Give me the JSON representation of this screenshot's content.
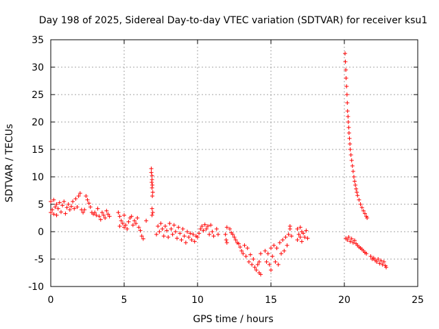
{
  "chart_data": {
    "type": "scatter",
    "title": "Day 198 of 2025, Sidereal Day-to-day VTEC variation (SDTVAR) for receiver ksu1",
    "xlabel": "GPS time / hours",
    "ylabel": "SDTVAR / TECUs",
    "xlim": [
      0,
      25
    ],
    "ylim": [
      -10,
      35
    ],
    "xticks": [
      0,
      5,
      10,
      15,
      20,
      25
    ],
    "yticks": [
      -10,
      -5,
      0,
      5,
      10,
      15,
      20,
      25,
      30,
      35
    ],
    "grid": true,
    "marker": "+",
    "color": "#ff0000",
    "series": [
      {
        "name": "SDTVAR",
        "points": [
          [
            0.0,
            5.5
          ],
          [
            0.0,
            3.5
          ],
          [
            0.1,
            4.0
          ],
          [
            0.2,
            5.8
          ],
          [
            0.2,
            3.2
          ],
          [
            0.3,
            4.5
          ],
          [
            0.4,
            5.0
          ],
          [
            0.4,
            3.0
          ],
          [
            0.5,
            4.2
          ],
          [
            0.6,
            5.3
          ],
          [
            0.7,
            3.6
          ],
          [
            0.8,
            4.8
          ],
          [
            0.9,
            5.5
          ],
          [
            1.0,
            3.3
          ],
          [
            1.1,
            4.4
          ],
          [
            1.2,
            5.0
          ],
          [
            1.3,
            4.0
          ],
          [
            1.4,
            4.6
          ],
          [
            1.5,
            5.5
          ],
          [
            1.6,
            4.2
          ],
          [
            1.7,
            6.0
          ],
          [
            1.8,
            4.5
          ],
          [
            1.9,
            6.5
          ],
          [
            2.0,
            7.0
          ],
          [
            2.1,
            4.0
          ],
          [
            2.2,
            3.5
          ],
          [
            2.3,
            4.0
          ],
          [
            2.4,
            6.5
          ],
          [
            2.5,
            5.8
          ],
          [
            2.6,
            5.2
          ],
          [
            2.7,
            4.5
          ],
          [
            2.8,
            3.5
          ],
          [
            2.9,
            3.2
          ],
          [
            3.0,
            3.5
          ],
          [
            3.1,
            3.0
          ],
          [
            3.2,
            4.2
          ],
          [
            3.3,
            2.8
          ],
          [
            3.4,
            2.2
          ],
          [
            3.5,
            3.5
          ],
          [
            3.6,
            3.0
          ],
          [
            3.7,
            2.5
          ],
          [
            3.8,
            3.8
          ],
          [
            3.9,
            3.2
          ],
          [
            4.0,
            2.8
          ],
          [
            4.6,
            3.5
          ],
          [
            4.7,
            2.8
          ],
          [
            4.7,
            1.0
          ],
          [
            4.8,
            2.0
          ],
          [
            4.9,
            1.5
          ],
          [
            5.0,
            3.0
          ],
          [
            5.0,
            0.8
          ],
          [
            5.1,
            1.2
          ],
          [
            5.2,
            0.5
          ],
          [
            5.3,
            1.8
          ],
          [
            5.4,
            2.5
          ],
          [
            5.5,
            2.8
          ],
          [
            5.6,
            1.2
          ],
          [
            5.7,
            2.0
          ],
          [
            5.8,
            1.5
          ],
          [
            5.9,
            2.5
          ],
          [
            6.0,
            0.8
          ],
          [
            6.1,
            0.2
          ],
          [
            6.2,
            -0.8
          ],
          [
            6.3,
            -1.3
          ],
          [
            6.5,
            2.0
          ],
          [
            6.85,
            11.5
          ],
          [
            6.85,
            10.8
          ],
          [
            6.9,
            10.2
          ],
          [
            6.9,
            9.5
          ],
          [
            6.88,
            9.0
          ],
          [
            6.92,
            8.5
          ],
          [
            6.9,
            8.0
          ],
          [
            6.95,
            7.2
          ],
          [
            6.92,
            6.5
          ],
          [
            6.9,
            4.2
          ],
          [
            6.95,
            3.5
          ],
          [
            6.9,
            3.0
          ],
          [
            7.2,
            -0.5
          ],
          [
            7.3,
            1.0
          ],
          [
            7.4,
            0.0
          ],
          [
            7.5,
            1.5
          ],
          [
            7.6,
            0.5
          ],
          [
            7.7,
            -0.8
          ],
          [
            7.8,
            1.0
          ],
          [
            7.9,
            0.2
          ],
          [
            8.0,
            -1.0
          ],
          [
            8.1,
            1.5
          ],
          [
            8.2,
            0.5
          ],
          [
            8.3,
            -0.5
          ],
          [
            8.4,
            1.2
          ],
          [
            8.5,
            0.0
          ],
          [
            8.6,
            -1.2
          ],
          [
            8.7,
            0.8
          ],
          [
            8.8,
            -0.3
          ],
          [
            8.9,
            -1.5
          ],
          [
            9.0,
            0.5
          ],
          [
            9.1,
            -0.8
          ],
          [
            9.2,
            -2.0
          ],
          [
            9.3,
            0.0
          ],
          [
            9.4,
            -1.0
          ],
          [
            9.5,
            -0.3
          ],
          [
            9.6,
            -1.5
          ],
          [
            9.7,
            -0.5
          ],
          [
            9.8,
            -1.8
          ],
          [
            9.9,
            -0.8
          ],
          [
            10.0,
            -1.0
          ],
          [
            10.1,
            -0.3
          ],
          [
            10.2,
            0.5
          ],
          [
            10.3,
            1.0
          ],
          [
            10.4,
            0.2
          ],
          [
            10.5,
            1.3
          ],
          [
            10.6,
            0.5
          ],
          [
            10.7,
            1.0
          ],
          [
            10.8,
            -0.5
          ],
          [
            10.9,
            1.2
          ],
          [
            11.0,
            0.0
          ],
          [
            11.1,
            -0.8
          ],
          [
            11.3,
            0.5
          ],
          [
            11.4,
            -0.5
          ],
          [
            11.9,
            -0.5
          ],
          [
            11.95,
            -1.5
          ],
          [
            12.0,
            -2.0
          ],
          [
            12.0,
            0.8
          ],
          [
            12.2,
            0.5
          ],
          [
            12.3,
            -0.2
          ],
          [
            12.4,
            -0.5
          ],
          [
            12.5,
            -1.0
          ],
          [
            12.6,
            -1.5
          ],
          [
            12.7,
            -2.0
          ],
          [
            12.8,
            -2.2
          ],
          [
            12.9,
            -2.8
          ],
          [
            13.0,
            -3.5
          ],
          [
            13.1,
            -4.0
          ],
          [
            13.2,
            -2.5
          ],
          [
            13.3,
            -4.5
          ],
          [
            13.4,
            -3.0
          ],
          [
            13.5,
            -5.5
          ],
          [
            13.6,
            -4.2
          ],
          [
            13.7,
            -6.0
          ],
          [
            13.8,
            -5.0
          ],
          [
            13.9,
            -6.5
          ],
          [
            14.0,
            -7.0
          ],
          [
            14.1,
            -6.0
          ],
          [
            14.2,
            -7.5
          ],
          [
            14.2,
            -5.5
          ],
          [
            14.3,
            -4.0
          ],
          [
            14.3,
            -7.8
          ],
          [
            14.6,
            -3.5
          ],
          [
            14.7,
            -5.5
          ],
          [
            14.8,
            -4.0
          ],
          [
            14.9,
            -6.0
          ],
          [
            15.0,
            -3.0
          ],
          [
            15.0,
            -7.0
          ],
          [
            15.1,
            -4.5
          ],
          [
            15.2,
            -2.5
          ],
          [
            15.3,
            -5.5
          ],
          [
            15.4,
            -3.0
          ],
          [
            15.5,
            -6.0
          ],
          [
            15.6,
            -2.0
          ],
          [
            15.7,
            -4.0
          ],
          [
            15.8,
            -1.5
          ],
          [
            15.9,
            -3.5
          ],
          [
            16.0,
            -1.0
          ],
          [
            16.1,
            -2.5
          ],
          [
            16.2,
            -0.5
          ],
          [
            16.3,
            0.5
          ],
          [
            16.3,
            1.0
          ],
          [
            16.4,
            -0.8
          ],
          [
            16.8,
            0.5
          ],
          [
            16.8,
            -1.5
          ],
          [
            16.9,
            -0.5
          ],
          [
            17.0,
            0.8
          ],
          [
            17.0,
            -1.0
          ],
          [
            17.1,
            0.0
          ],
          [
            17.1,
            -1.8
          ],
          [
            17.2,
            -0.3
          ],
          [
            17.3,
            -1.0
          ],
          [
            17.4,
            0.2
          ],
          [
            17.5,
            -1.2
          ],
          [
            20.05,
            32.5
          ],
          [
            20.07,
            31.0
          ],
          [
            20.1,
            29.5
          ],
          [
            20.12,
            28.0
          ],
          [
            20.15,
            26.5
          ],
          [
            20.18,
            25.0
          ],
          [
            20.2,
            23.5
          ],
          [
            20.22,
            22.0
          ],
          [
            20.25,
            21.0
          ],
          [
            20.27,
            20.0
          ],
          [
            20.3,
            19.0
          ],
          [
            20.32,
            18.0
          ],
          [
            20.35,
            17.0
          ],
          [
            20.38,
            16.0
          ],
          [
            20.4,
            15.0
          ],
          [
            20.45,
            14.0
          ],
          [
            20.5,
            13.0
          ],
          [
            20.55,
            12.0
          ],
          [
            20.6,
            11.0
          ],
          [
            20.65,
            10.0
          ],
          [
            20.7,
            9.2
          ],
          [
            20.75,
            8.5
          ],
          [
            20.8,
            7.8
          ],
          [
            20.85,
            7.2
          ],
          [
            20.9,
            6.6
          ],
          [
            21.0,
            5.8
          ],
          [
            21.1,
            5.0
          ],
          [
            21.2,
            4.4
          ],
          [
            21.3,
            3.8
          ],
          [
            21.4,
            3.3
          ],
          [
            21.5,
            2.8
          ],
          [
            21.55,
            2.5
          ],
          [
            20.1,
            -1.2
          ],
          [
            20.2,
            -1.5
          ],
          [
            20.3,
            -1.0
          ],
          [
            20.4,
            -1.8
          ],
          [
            20.5,
            -1.3
          ],
          [
            20.6,
            -2.0
          ],
          [
            20.7,
            -1.6
          ],
          [
            20.8,
            -2.2
          ],
          [
            20.9,
            -2.5
          ],
          [
            21.0,
            -2.8
          ],
          [
            21.1,
            -3.0
          ],
          [
            21.2,
            -3.2
          ],
          [
            21.3,
            -3.5
          ],
          [
            21.4,
            -3.8
          ],
          [
            21.5,
            -4.0
          ],
          [
            21.8,
            -4.5
          ],
          [
            21.9,
            -5.0
          ],
          [
            22.0,
            -4.8
          ],
          [
            22.1,
            -5.2
          ],
          [
            22.2,
            -5.5
          ],
          [
            22.3,
            -5.0
          ],
          [
            22.4,
            -5.8
          ],
          [
            22.5,
            -5.3
          ],
          [
            22.6,
            -6.0
          ],
          [
            22.7,
            -5.5
          ],
          [
            22.8,
            -6.2
          ],
          [
            22.85,
            -6.5
          ]
        ]
      }
    ]
  }
}
